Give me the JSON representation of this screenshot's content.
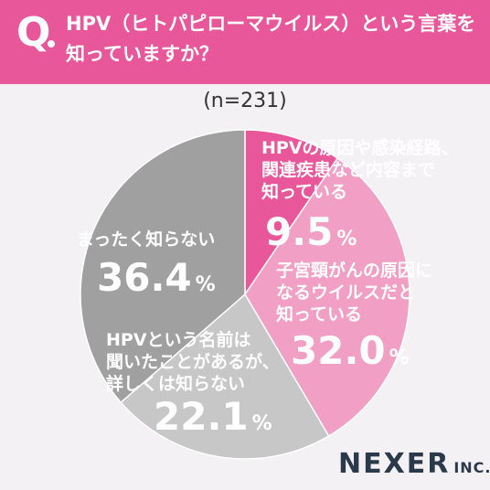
{
  "header": {
    "q_mark": "Q",
    "question_line1": "HPV（ヒトパピローマウイルス）という言葉を",
    "question_line2": "知っていますか？"
  },
  "sample_size": "(n=231)",
  "logo": {
    "main": "NEXER",
    "inc": "INC."
  },
  "chart_data": {
    "type": "pie",
    "title": "",
    "slices": [
      {
        "label": [
          "HPVの原因や感染経路、",
          "関連疾患など内容まで",
          "知っている"
        ],
        "value": 9.5,
        "value_label": "9.5",
        "color": "#e8579a",
        "text_color": "#ffffff"
      },
      {
        "label": [
          "子宮頸がんの原因に",
          "なるウイルスだと",
          "知っている"
        ],
        "value": 32.0,
        "value_label": "32.0",
        "color": "#f19fc4",
        "text_color": "#ffffff"
      },
      {
        "label": [
          "HPVという名前は",
          "聞いたことがあるが、",
          "詳しくは知らない"
        ],
        "value": 22.1,
        "value_label": "22.1",
        "color": "#c7c7c7",
        "text_color": "#ffffff"
      },
      {
        "label": [
          "まったく知らない"
        ],
        "value": 36.4,
        "value_label": "36.4",
        "color": "#a0a0a0",
        "text_color": "#ffffff"
      }
    ],
    "unit": "%"
  }
}
